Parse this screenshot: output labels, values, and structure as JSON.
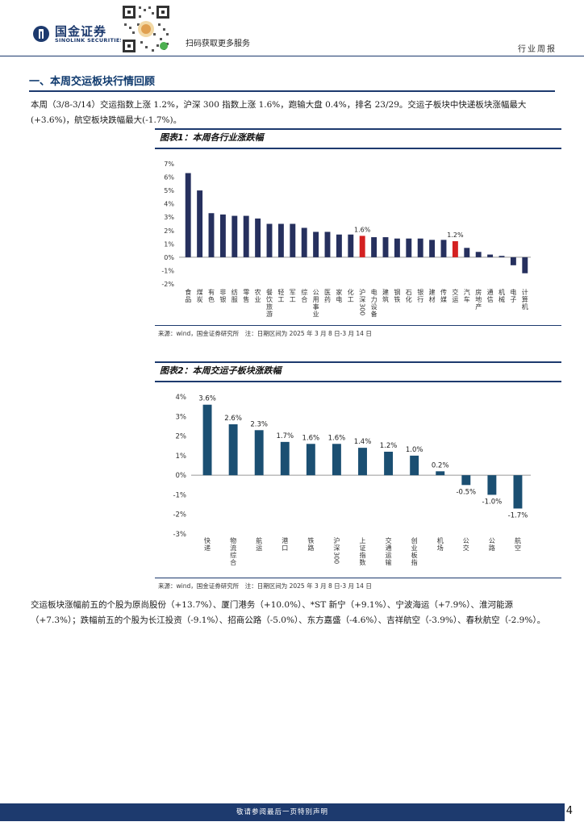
{
  "header": {
    "brand_cn": "国金证券",
    "brand_en": "SINOLINK SECURITIES",
    "qr_caption": "扫码获取更多服务",
    "report_type": "行业周报"
  },
  "section": {
    "title": "一、本周交运板块行情回顾"
  },
  "paragraph1": "本周（3/8-3/14）交运指数上涨 1.2%，沪深 300 指数上涨 1.6%，跑输大盘 0.4%，排名 23/29。交运子板块中快递板块涨幅最大(+3.6%)，航空板块跌幅最大(-1.7%)。",
  "paragraph2": "交运板块涨幅前五的个股为原尚股份（+13.7%）、厦门港务（+10.0%）、*ST 新宁（+9.1%）、宁波海运（+7.9%）、淮河能源（+7.3%）；跌幅前五的个股为长江投资（-9.1%）、招商公路（-5.0%）、东方嘉盛（-4.6%）、吉祥航空（-3.9%）、春秋航空（-2.9%）。",
  "figure1": {
    "title": "图表1：本周各行业涨跌幅",
    "source": "来源：wind，国金证券研究所　注：日期区间为 2025 年 3 月 8 日-3 月 14 日"
  },
  "figure2": {
    "title": "图表2：本周交运子板块涨跌幅",
    "source": "来源：wind，国金证券研究所　注：日期区间为 2025 年 3 月 8 日-3 月 14 日"
  },
  "footer": {
    "disclaimer": "敬请参阅最后一页特别声明",
    "page": "4"
  },
  "colors": {
    "bar_navy": "#26305e",
    "bar_red": "#d42121",
    "bar_blue": "#1b4f72",
    "brand_navy": "#1d3a6e"
  },
  "chart_data": [
    {
      "type": "bar",
      "ylim": [
        -2,
        7
      ],
      "yticks": [
        -2,
        -1,
        0,
        1,
        2,
        3,
        4,
        5,
        6,
        7
      ],
      "ytick_labels": [
        "-2%",
        "-1%",
        "0%",
        "1%",
        "2%",
        "3%",
        "4%",
        "5%",
        "6%",
        "7%"
      ],
      "grid": false,
      "categories": [
        "食品",
        "煤炭",
        "有色",
        "非银",
        "纺服",
        "零售",
        "农业",
        "餐饮旅游",
        "轻工",
        "军工",
        "综合",
        "公用事业",
        "医药",
        "家电",
        "化工",
        "沪深300",
        "电力设备",
        "建筑",
        "钢铁",
        "石化",
        "银行",
        "建材",
        "传媒",
        "交运",
        "汽车",
        "房地产",
        "通信",
        "机械",
        "电子",
        "计算机"
      ],
      "values": [
        6.3,
        5.0,
        3.3,
        3.2,
        3.1,
        3.1,
        2.9,
        2.5,
        2.5,
        2.5,
        2.2,
        1.9,
        1.9,
        1.7,
        1.7,
        1.6,
        1.5,
        1.5,
        1.4,
        1.4,
        1.4,
        1.3,
        1.3,
        1.2,
        0.7,
        0.4,
        0.2,
        0.1,
        -0.6,
        -1.2
      ],
      "highlight": [
        "沪深300",
        "交运"
      ],
      "data_labels": {
        "沪深300": "1.6%",
        "交运": "1.2%"
      }
    },
    {
      "type": "bar",
      "ylim": [
        -3,
        4
      ],
      "yticks": [
        -3,
        -2,
        -1,
        0,
        1,
        2,
        3,
        4
      ],
      "ytick_labels": [
        "-3%",
        "-2%",
        "-1%",
        "0%",
        "1%",
        "2%",
        "3%",
        "4%"
      ],
      "grid": false,
      "categories": [
        "快递",
        "物流综合",
        "航运",
        "港口",
        "铁路",
        "沪深300",
        "上证指数",
        "交通运输",
        "创业板指",
        "机场",
        "公交",
        "公路",
        "航空"
      ],
      "values": [
        3.6,
        2.6,
        2.3,
        1.7,
        1.6,
        1.6,
        1.4,
        1.2,
        1.0,
        0.2,
        -0.5,
        -1.0,
        -1.7
      ],
      "data_labels": [
        "3.6%",
        "2.6%",
        "2.3%",
        "1.7%",
        "1.6%",
        "1.6%",
        "1.4%",
        "1.2%",
        "1.0%",
        "0.2%",
        "-0.5%",
        "-1.0%",
        "-1.7%"
      ]
    }
  ]
}
